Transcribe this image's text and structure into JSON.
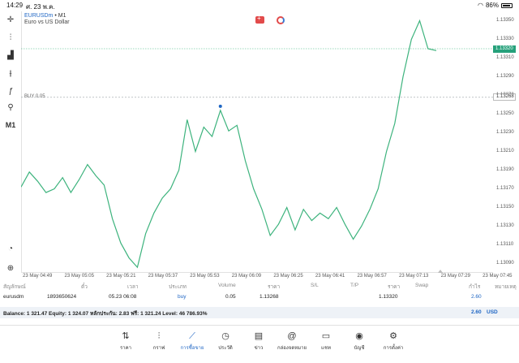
{
  "status_bar": {
    "time": "14:29",
    "date": "ศ. 23 พ.ค.",
    "battery": "86%"
  },
  "symbol": {
    "name": "EURUSDm",
    "sep": " • ",
    "timeframe": "M1",
    "description": "Euro vs US Dollar"
  },
  "buy_line_label": "BUY 0.05",
  "left_tools": [
    "crosshair-icon",
    "candles-icon",
    "indicators-icon",
    "objects-icon",
    "function-icon",
    "shapes-icon",
    "M1"
  ],
  "left_tool_m1": "M1",
  "price_axis": [
    "1.13350",
    "1.13330",
    "1.13310",
    "1.13290",
    "1.13270",
    "1.13250",
    "1.13230",
    "1.13210",
    "1.13190",
    "1.13170",
    "1.13150",
    "1.13130",
    "1.13110",
    "1.13090"
  ],
  "current_price": "1.13320",
  "buy_price_tag": "1.13268",
  "time_axis": [
    "23 May 04:49",
    "23 May 05:05",
    "23 May 05:21",
    "23 May 05:37",
    "23 May 05:53",
    "23 May 06:09",
    "23 May 06:25",
    "23 May 06:41",
    "23 May 06:57",
    "23 May 07:13",
    "23 May 07:29",
    "23 May 07:45"
  ],
  "colors": {
    "line": "#3db37d",
    "accent": "#1f66c4",
    "current_tag": "#26a17b"
  },
  "trade_table": {
    "headers": [
      "สัญลักษณ์",
      "ตั๋ว",
      "เวลา",
      "ประเภท",
      "Volume",
      "ราคา",
      "S/L",
      "T/P",
      "ราคา",
      "Swap",
      "กำไร",
      "หมายเหตุ"
    ],
    "row": {
      "symbol": "eurusdm",
      "ticket": "1893650624",
      "time": "05.23 06:08",
      "type": "buy",
      "volume": "0.05",
      "price_open": "1.13268",
      "price_current": "1.13320",
      "profit": "2.60"
    }
  },
  "balance": {
    "text": "Balance: 1 321.47 Equity: 1 324.07 หลักประกัน: 2.83 ฟรี: 1 321.24 Level: 46 786.93%",
    "profit": "2.60",
    "currency": "USD"
  },
  "tabs": [
    {
      "label": "ราคา",
      "icon": "quotes-icon"
    },
    {
      "label": "กราฟ",
      "icon": "chart-icon"
    },
    {
      "label": "การซื้อขาย",
      "icon": "trade-icon"
    },
    {
      "label": "ประวัติ",
      "icon": "history-icon"
    },
    {
      "label": "ข่าว",
      "icon": "news-icon"
    },
    {
      "label": "กล่องจดหมาย",
      "icon": "mailbox-icon"
    },
    {
      "label": "แชท",
      "icon": "chat-icon"
    },
    {
      "label": "บัญชี",
      "icon": "accounts-icon"
    },
    {
      "label": "การตั้งค่า",
      "icon": "settings-icon"
    }
  ],
  "chart_data": {
    "type": "line",
    "xlabel": "",
    "ylabel": "",
    "ylim": [
      1.1308,
      1.1336
    ],
    "x": [
      "04:49",
      "04:52",
      "04:55",
      "04:58",
      "05:01",
      "05:04",
      "05:07",
      "05:10",
      "05:13",
      "05:16",
      "05:19",
      "05:22",
      "05:25",
      "05:28",
      "05:31",
      "05:34",
      "05:37",
      "05:40",
      "05:43",
      "05:46",
      "05:49",
      "05:52",
      "05:55",
      "05:58",
      "06:01",
      "06:04",
      "06:07",
      "06:10",
      "06:13",
      "06:16",
      "06:19",
      "06:22",
      "06:25",
      "06:28",
      "06:31",
      "06:34",
      "06:37",
      "06:40",
      "06:43",
      "06:46",
      "06:49",
      "06:52",
      "06:55",
      "06:58",
      "07:01",
      "07:04",
      "07:07",
      "07:10",
      "07:13",
      "07:16",
      "07:19"
    ],
    "values": [
      1.13172,
      1.13188,
      1.13178,
      1.13166,
      1.1317,
      1.13182,
      1.13166,
      1.1318,
      1.13196,
      1.13184,
      1.13174,
      1.13138,
      1.13112,
      1.13096,
      1.13086,
      1.13122,
      1.13144,
      1.1316,
      1.1317,
      1.1319,
      1.13244,
      1.1321,
      1.13236,
      1.13226,
      1.13254,
      1.13232,
      1.13238,
      1.132,
      1.1317,
      1.13148,
      1.1312,
      1.13132,
      1.1315,
      1.13126,
      1.13148,
      1.13136,
      1.13144,
      1.13138,
      1.1315,
      1.13132,
      1.13116,
      1.1313,
      1.13148,
      1.1317,
      1.1321,
      1.1324,
      1.1329,
      1.1333,
      1.1335,
      1.1332,
      1.13318
    ],
    "buy_level": 1.13268,
    "grid": false
  }
}
